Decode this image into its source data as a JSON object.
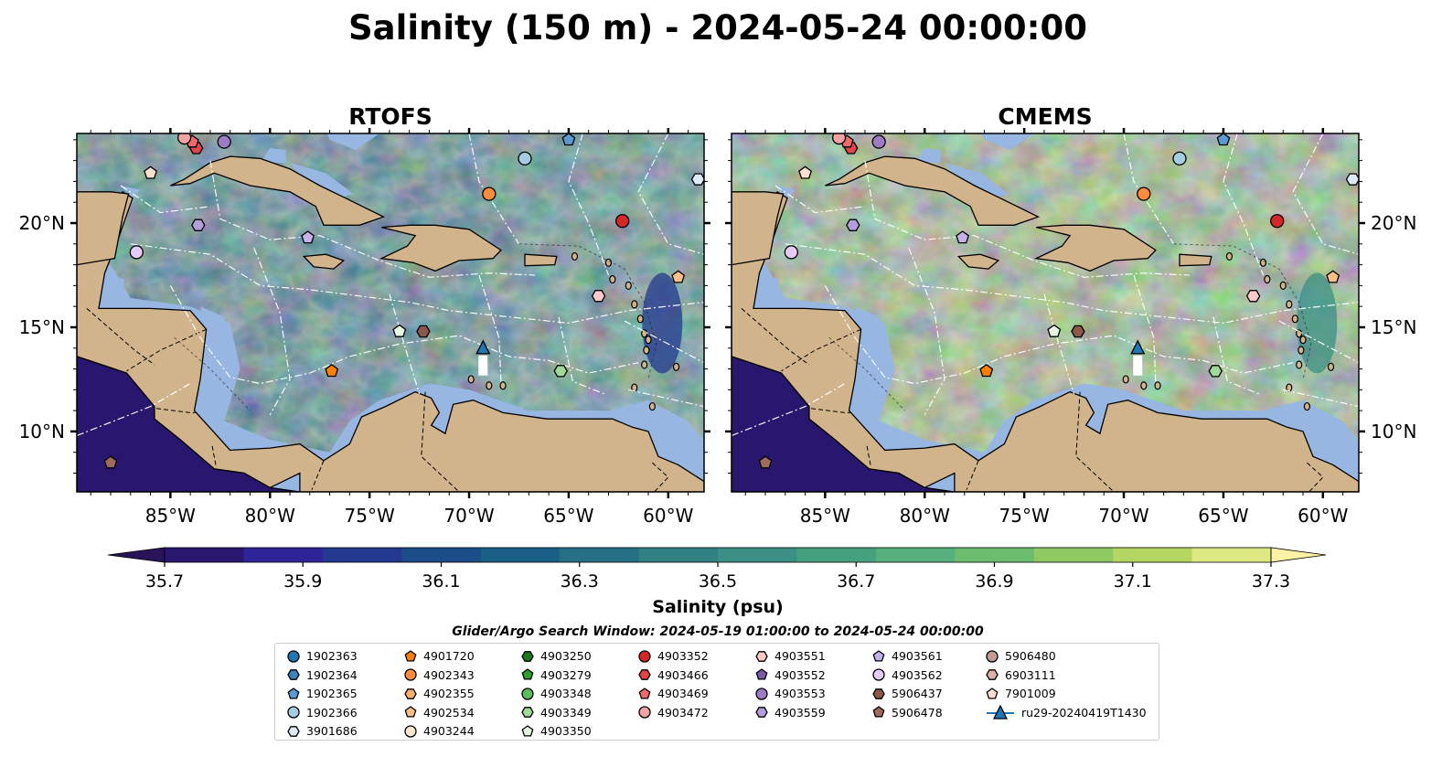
{
  "title": "Salinity (150 m) - 2024-05-24 00:00:00",
  "panels": [
    {
      "title": "RTOFS",
      "palette_shift": 0
    },
    {
      "title": "CMEMS",
      "palette_shift": 3
    }
  ],
  "map": {
    "lon_range": [
      -89.7,
      -58.2
    ],
    "lat_range": [
      7.1,
      24.3
    ],
    "lon_ticks": [
      -85,
      -80,
      -75,
      -70,
      -65,
      -60
    ],
    "lon_tick_labels": [
      "85°W",
      "80°W",
      "75°W",
      "70°W",
      "65°W",
      "60°W"
    ],
    "lat_ticks": [
      10,
      15,
      20
    ],
    "lat_tick_labels": [
      "10°N",
      "15°N",
      "20°N"
    ],
    "land_color": "#d2b48c",
    "shelf_color": "#97b6e1",
    "deep_pacific_color": "#29166e"
  },
  "chart_data": {
    "type": "heatmap",
    "title": "Salinity (150 m) - 2024-05-24 00:00:00",
    "colorbar": {
      "label": "Salinity (psu)",
      "min": 35.7,
      "max": 37.3,
      "extend": "both",
      "ticks": [
        35.7,
        35.9,
        36.1,
        36.3,
        36.5,
        36.7,
        36.9,
        37.1,
        37.3
      ],
      "tick_labels": [
        "35.7",
        "35.9",
        "36.1",
        "36.3",
        "36.5",
        "36.7",
        "36.9",
        "37.1",
        "37.3"
      ],
      "colors": [
        "#29166e",
        "#2f2497",
        "#23388f",
        "#1b4d89",
        "#1a5f86",
        "#267085",
        "#318084",
        "#3b8f84",
        "#45a07f",
        "#56b07b",
        "#6cbc6e",
        "#8ec962",
        "#b5d660",
        "#ddea84"
      ],
      "extend_colors": [
        "#291459",
        "#fbf2a6"
      ]
    },
    "search_window": "Glider/Argo Search Window: 2024-05-19 01:00:00 to 2024-05-24 00:00:00",
    "floats": [
      {
        "id": "1902363",
        "marker": "circle",
        "color": "#1f77b4"
      },
      {
        "id": "1902364",
        "marker": "hexagon",
        "color": "#3a84c1"
      },
      {
        "id": "1902365",
        "marker": "pentagon",
        "color": "#5a9bd3",
        "lon": -65.0,
        "lat": 24.0
      },
      {
        "id": "1902366",
        "marker": "circle",
        "color": "#a6cee3",
        "lon": -67.2,
        "lat": 23.1
      },
      {
        "id": "3901686",
        "marker": "hexagon",
        "color": "#deebf7",
        "lon": -58.5,
        "lat": 22.1
      },
      {
        "id": "4901720",
        "marker": "pentagon",
        "color": "#ff7f00",
        "lon": -76.9,
        "lat": 12.9
      },
      {
        "id": "4902343",
        "marker": "circle",
        "color": "#fd8d3c",
        "lon": -69.0,
        "lat": 21.4
      },
      {
        "id": "4902355",
        "marker": "hexagon",
        "color": "#fdae6b"
      },
      {
        "id": "4902534",
        "marker": "pentagon",
        "color": "#fdbf8a",
        "lon": -59.5,
        "lat": 17.4
      },
      {
        "id": "4903244",
        "marker": "circle",
        "color": "#fee6ce"
      },
      {
        "id": "4903250",
        "marker": "hexagon",
        "color": "#1a7a1a"
      },
      {
        "id": "4903279",
        "marker": "pentagon",
        "color": "#2ca02c"
      },
      {
        "id": "4903348",
        "marker": "circle",
        "color": "#5cbd5c"
      },
      {
        "id": "4903349",
        "marker": "hexagon",
        "color": "#a1d99b",
        "lon": -65.4,
        "lat": 12.9
      },
      {
        "id": "4903350",
        "marker": "pentagon",
        "color": "#e5f5e0",
        "lon": -73.5,
        "lat": 14.8
      },
      {
        "id": "4903352",
        "marker": "circle",
        "color": "#d62728",
        "lon": -62.3,
        "lat": 20.1
      },
      {
        "id": "4903466",
        "marker": "hexagon",
        "color": "#e0454a",
        "lon": -83.7,
        "lat": 23.6
      },
      {
        "id": "4903469",
        "marker": "pentagon",
        "color": "#ef6b6b",
        "lon": -83.9,
        "lat": 23.9
      },
      {
        "id": "4903472",
        "marker": "circle",
        "color": "#f4a3a3",
        "lon": -84.3,
        "lat": 24.1
      },
      {
        "id": "4903551",
        "marker": "hexagon",
        "color": "#fbc9c9",
        "lon": -63.5,
        "lat": 16.5
      },
      {
        "id": "4903552",
        "marker": "pentagon",
        "color": "#7b5aa6"
      },
      {
        "id": "4903553",
        "marker": "circle",
        "color": "#9e7bc7",
        "lon": -82.3,
        "lat": 23.9
      },
      {
        "id": "4903559",
        "marker": "hexagon",
        "color": "#b39ddb",
        "lon": -83.6,
        "lat": 19.9
      },
      {
        "id": "4903561",
        "marker": "pentagon",
        "color": "#c7b1ea",
        "lon": -78.1,
        "lat": 19.3
      },
      {
        "id": "4903562",
        "marker": "circle",
        "color": "#e6ccf5",
        "lon": -86.7,
        "lat": 18.6
      },
      {
        "id": "5906437",
        "marker": "hexagon",
        "color": "#8c564b",
        "lon": -72.3,
        "lat": 14.8
      },
      {
        "id": "5906478",
        "marker": "pentagon",
        "color": "#a0695e",
        "lon": -88.0,
        "lat": 8.5
      },
      {
        "id": "5906480",
        "marker": "circle",
        "color": "#c49c94"
      },
      {
        "id": "6903111",
        "marker": "hexagon",
        "color": "#d9b3a8"
      },
      {
        "id": "7901009",
        "marker": "pentagon",
        "color": "#fde0d0",
        "lon": -86.0,
        "lat": 22.4
      },
      {
        "id": "ru29-20240419T1430",
        "marker": "triangle",
        "color": "#1f77b4",
        "lon": -69.3,
        "lat": 14.0
      }
    ]
  }
}
